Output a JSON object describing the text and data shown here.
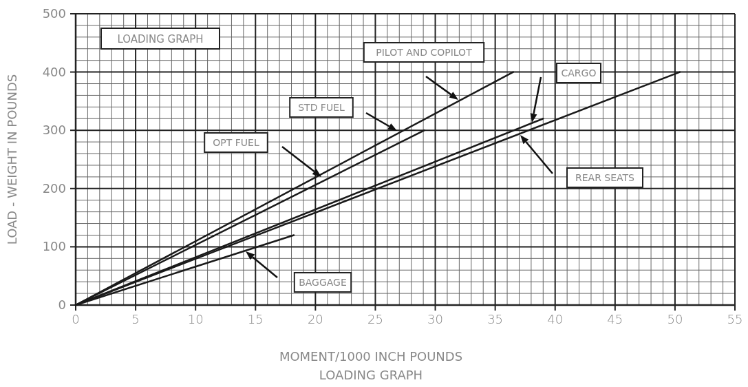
{
  "chart_data": {
    "type": "line",
    "title": "LOADING GRAPH",
    "xlabel": "MOMENT/1000 INCH POUNDS",
    "ylabel": "LOAD - WEIGHT IN POUNDS",
    "xlim": [
      0,
      55
    ],
    "xticks": [
      0,
      5,
      10,
      15,
      20,
      25,
      30,
      35,
      40,
      45,
      50,
      55
    ],
    "ylim": [
      0,
      500
    ],
    "yticks": [
      0,
      100,
      200,
      300,
      400,
      500
    ],
    "grid": true,
    "series": [
      {
        "color": "#1a1a1a",
        "x": [
          0,
          36.5
        ],
        "values": [
          0,
          400
        ]
      },
      {
        "color": "#1a1a1a",
        "x": [
          0,
          29.1
        ],
        "values": [
          0,
          300
        ]
      },
      {
        "color": "#1a1a1a",
        "x": [
          0,
          39
        ],
        "values": [
          0,
          320
        ]
      },
      {
        "color": "#1a1a1a",
        "x": [
          0,
          50.4
        ],
        "values": [
          0,
          400
        ]
      },
      {
        "color": "#1a1a1a",
        "x": [
          0,
          18.2
        ],
        "values": [
          0,
          120
        ]
      }
    ],
    "annotations": [
      "LOADING GRAPH",
      "PILOT AND COPILOT",
      "STD FUEL",
      "OPT FUEL",
      "CARGO",
      "REAR SEATS",
      "BAGGAGE"
    ]
  }
}
